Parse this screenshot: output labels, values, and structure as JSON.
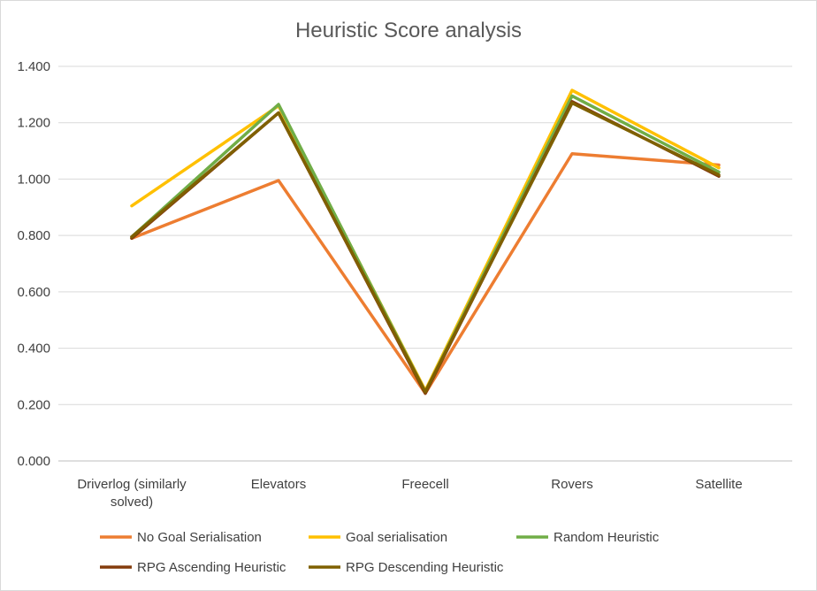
{
  "chart_data": {
    "type": "line",
    "title": "Heuristic Score analysis",
    "xlabel": "",
    "ylabel": "",
    "categories": [
      "Driverlog (similarly solved)",
      "Elevators",
      "Freecell",
      "Rovers",
      "Satellite"
    ],
    "category_lines": [
      [
        "Driverlog (similarly",
        "solved)"
      ],
      [
        "Elevators"
      ],
      [
        "Freecell"
      ],
      [
        "Rovers"
      ],
      [
        "Satellite"
      ]
    ],
    "ylim": [
      0,
      1.4
    ],
    "yticks": [
      "0.000",
      "0.200",
      "0.400",
      "0.600",
      "0.800",
      "1.000",
      "1.200",
      "1.400"
    ],
    "grid": true,
    "legend_position": "bottom",
    "series": [
      {
        "name": "No Goal Serialisation",
        "color": "#ED7D31",
        "values": [
          0.79,
          0.995,
          0.24,
          1.09,
          1.05
        ]
      },
      {
        "name": "Goal serialisation",
        "color": "#FFC000",
        "values": [
          0.905,
          1.26,
          0.25,
          1.315,
          1.04
        ]
      },
      {
        "name": "Random Heuristic",
        "color": "#70AD47",
        "values": [
          0.795,
          1.265,
          0.245,
          1.295,
          1.025
        ]
      },
      {
        "name": "RPG Ascending Heuristic",
        "color": "#843C0C",
        "values": [
          0.79,
          1.235,
          0.24,
          1.275,
          1.01
        ]
      },
      {
        "name": "RPG Descending Heuristic",
        "color": "#7F6000",
        "values": [
          0.795,
          1.235,
          0.245,
          1.27,
          1.015
        ]
      }
    ]
  }
}
